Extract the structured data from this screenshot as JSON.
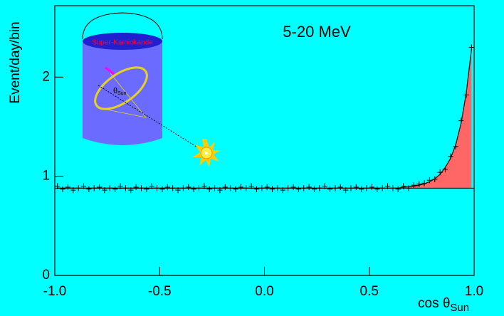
{
  "chart_data": {
    "type": "scatter",
    "title": "5-20 MeV",
    "y_label": "Event/day/bin",
    "x_label": "cos θ",
    "x_label_sub": "Sun",
    "inset": {
      "label": "Super-Kamiokande",
      "angle_label": "θ",
      "angle_sub": "Sun"
    },
    "xlim": [
      -1,
      1
    ],
    "ylim": [
      0,
      2.72
    ],
    "xticks": [
      {
        "value": -1,
        "label": "-1.0"
      },
      {
        "value": -0.5,
        "label": "-0.5"
      },
      {
        "value": 0,
        "label": "0.0"
      },
      {
        "value": 0.5,
        "label": "0.5"
      },
      {
        "value": 1,
        "label": "1.0"
      }
    ],
    "yticks": [
      0,
      1,
      2
    ],
    "background": 0.88,
    "background_color": "#ff6666",
    "error": 0.03,
    "points": {
      "x": [
        -0.9875,
        -0.9625,
        -0.9375,
        -0.9125,
        -0.8875,
        -0.8625,
        -0.8375,
        -0.8125,
        -0.7875,
        -0.7625,
        -0.7375,
        -0.7125,
        -0.6875,
        -0.6625,
        -0.6375,
        -0.6125,
        -0.5875,
        -0.5625,
        -0.5375,
        -0.5125,
        -0.4875,
        -0.4625,
        -0.4375,
        -0.4125,
        -0.3875,
        -0.3625,
        -0.3375,
        -0.3125,
        -0.2875,
        -0.2625,
        -0.2375,
        -0.2125,
        -0.1875,
        -0.1625,
        -0.1375,
        -0.1125,
        -0.0875,
        -0.0625,
        -0.0375,
        -0.0125,
        0.0125,
        0.0375,
        0.0625,
        0.0875,
        0.1125,
        0.1375,
        0.1625,
        0.1875,
        0.2125,
        0.2375,
        0.2625,
        0.2875,
        0.3125,
        0.3375,
        0.3625,
        0.3875,
        0.4125,
        0.4375,
        0.4625,
        0.4875,
        0.5125,
        0.5375,
        0.5625,
        0.5875,
        0.6125,
        0.6375,
        0.6625,
        0.6875,
        0.7125,
        0.7375,
        0.7625,
        0.7875,
        0.8125,
        0.8375,
        0.8625,
        0.8875,
        0.9125,
        0.9375,
        0.9625,
        0.9875
      ],
      "values": [
        0.9,
        0.87,
        0.89,
        0.86,
        0.88,
        0.9,
        0.87,
        0.88,
        0.89,
        0.86,
        0.88,
        0.87,
        0.9,
        0.88,
        0.86,
        0.89,
        0.88,
        0.87,
        0.9,
        0.88,
        0.87,
        0.89,
        0.88,
        0.86,
        0.88,
        0.89,
        0.87,
        0.88,
        0.9,
        0.87,
        0.88,
        0.86,
        0.89,
        0.88,
        0.87,
        0.89,
        0.88,
        0.9,
        0.87,
        0.88,
        0.89,
        0.87,
        0.88,
        0.86,
        0.88,
        0.89,
        0.87,
        0.88,
        0.89,
        0.87,
        0.88,
        0.9,
        0.87,
        0.88,
        0.89,
        0.86,
        0.88,
        0.89,
        0.87,
        0.88,
        0.89,
        0.87,
        0.88,
        0.9,
        0.88,
        0.87,
        0.9,
        0.88,
        0.91,
        0.92,
        0.93,
        0.96,
        0.97,
        1.04,
        1.07,
        1.2,
        1.3,
        1.56,
        1.82,
        2.3
      ],
      "fit": [
        0.88,
        0.88,
        0.88,
        0.88,
        0.88,
        0.88,
        0.88,
        0.88,
        0.88,
        0.88,
        0.88,
        0.88,
        0.88,
        0.88,
        0.88,
        0.88,
        0.88,
        0.88,
        0.88,
        0.88,
        0.88,
        0.88,
        0.88,
        0.88,
        0.88,
        0.88,
        0.88,
        0.88,
        0.88,
        0.88,
        0.88,
        0.88,
        0.88,
        0.88,
        0.88,
        0.88,
        0.88,
        0.88,
        0.88,
        0.88,
        0.88,
        0.88,
        0.88,
        0.88,
        0.88,
        0.88,
        0.88,
        0.88,
        0.88,
        0.88,
        0.88,
        0.88,
        0.88,
        0.88,
        0.88,
        0.88,
        0.88,
        0.88,
        0.88,
        0.88,
        0.88,
        0.88,
        0.88,
        0.88,
        0.88,
        0.88,
        0.89,
        0.894,
        0.9,
        0.91,
        0.924,
        0.945,
        0.975,
        1.02,
        1.09,
        1.18,
        1.32,
        1.53,
        1.84,
        2.28
      ]
    }
  }
}
